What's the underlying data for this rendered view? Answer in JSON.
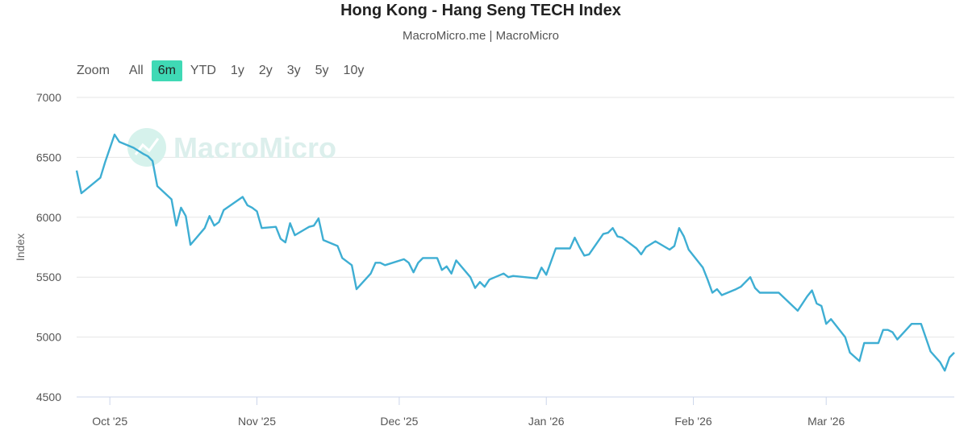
{
  "chart_data": {
    "type": "line",
    "title": "Hong Kong - Hang Seng TECH Index",
    "subtitle": "MacroMicro.me | MacroMicro",
    "ylabel": "Index",
    "xlabel": "",
    "ylim": [
      4500,
      7000
    ],
    "yticks": [
      4500,
      5000,
      5500,
      6000,
      6500,
      7000
    ],
    "xticks": [
      {
        "label": "Oct '25",
        "date": "2025-10-01"
      },
      {
        "label": "Nov '25",
        "date": "2025-11-01"
      },
      {
        "label": "Dec '25",
        "date": "2025-12-01"
      },
      {
        "label": "Jan '26",
        "date": "2026-01-01"
      },
      {
        "label": "Feb '26",
        "date": "2026-02-01"
      },
      {
        "label": "Mar '26",
        "date": "2026-03-01"
      }
    ],
    "grid": "horizontal",
    "line_color": "#3eaed3",
    "series": [
      {
        "name": "",
        "points": [
          [
            "2025-09-24",
            6390
          ],
          [
            "2025-09-25",
            6200
          ],
          [
            "2025-09-29",
            6330
          ],
          [
            "2025-09-30",
            6460
          ],
          [
            "2025-10-02",
            6690
          ],
          [
            "2025-10-03",
            6630
          ],
          [
            "2025-10-06",
            6580
          ],
          [
            "2025-10-08",
            6530
          ],
          [
            "2025-10-09",
            6510
          ],
          [
            "2025-10-10",
            6470
          ],
          [
            "2025-10-11",
            6260
          ],
          [
            "2025-10-14",
            6150
          ],
          [
            "2025-10-15",
            5930
          ],
          [
            "2025-10-16",
            6080
          ],
          [
            "2025-10-17",
            6010
          ],
          [
            "2025-10-18",
            5770
          ],
          [
            "2025-10-21",
            5910
          ],
          [
            "2025-10-22",
            6010
          ],
          [
            "2025-10-23",
            5930
          ],
          [
            "2025-10-24",
            5960
          ],
          [
            "2025-10-25",
            6060
          ],
          [
            "2025-10-29",
            6170
          ],
          [
            "2025-10-30",
            6100
          ],
          [
            "2025-10-31",
            6080
          ],
          [
            "2025-11-01",
            6050
          ],
          [
            "2025-11-02",
            5910
          ],
          [
            "2025-11-05",
            5920
          ],
          [
            "2025-11-06",
            5820
          ],
          [
            "2025-11-07",
            5790
          ],
          [
            "2025-11-08",
            5950
          ],
          [
            "2025-11-09",
            5850
          ],
          [
            "2025-11-12",
            5920
          ],
          [
            "2025-11-13",
            5930
          ],
          [
            "2025-11-14",
            5990
          ],
          [
            "2025-11-15",
            5810
          ],
          [
            "2025-11-18",
            5760
          ],
          [
            "2025-11-19",
            5660
          ],
          [
            "2025-11-21",
            5600
          ],
          [
            "2025-11-22",
            5400
          ],
          [
            "2025-11-25",
            5530
          ],
          [
            "2025-11-26",
            5620
          ],
          [
            "2025-11-27",
            5620
          ],
          [
            "2025-11-28",
            5600
          ],
          [
            "2025-12-02",
            5650
          ],
          [
            "2025-12-03",
            5620
          ],
          [
            "2025-12-04",
            5540
          ],
          [
            "2025-12-05",
            5620
          ],
          [
            "2025-12-06",
            5660
          ],
          [
            "2025-12-09",
            5660
          ],
          [
            "2025-12-10",
            5560
          ],
          [
            "2025-12-11",
            5590
          ],
          [
            "2025-12-12",
            5530
          ],
          [
            "2025-12-13",
            5640
          ],
          [
            "2025-12-16",
            5500
          ],
          [
            "2025-12-17",
            5410
          ],
          [
            "2025-12-18",
            5460
          ],
          [
            "2025-12-19",
            5420
          ],
          [
            "2025-12-20",
            5480
          ],
          [
            "2025-12-23",
            5530
          ],
          [
            "2025-12-24",
            5500
          ],
          [
            "2025-12-25",
            5510
          ],
          [
            "2025-12-30",
            5490
          ],
          [
            "2025-12-31",
            5580
          ],
          [
            "2026-01-01",
            5520
          ],
          [
            "2026-01-03",
            5740
          ],
          [
            "2026-01-06",
            5740
          ],
          [
            "2026-01-07",
            5830
          ],
          [
            "2026-01-08",
            5750
          ],
          [
            "2026-01-09",
            5680
          ],
          [
            "2026-01-10",
            5690
          ],
          [
            "2026-01-13",
            5860
          ],
          [
            "2026-01-14",
            5870
          ],
          [
            "2026-01-15",
            5910
          ],
          [
            "2026-01-16",
            5840
          ],
          [
            "2026-01-17",
            5830
          ],
          [
            "2026-01-20",
            5740
          ],
          [
            "2026-01-21",
            5690
          ],
          [
            "2026-01-22",
            5750
          ],
          [
            "2026-01-24",
            5800
          ],
          [
            "2026-01-27",
            5730
          ],
          [
            "2026-01-28",
            5760
          ],
          [
            "2026-01-29",
            5910
          ],
          [
            "2026-01-30",
            5840
          ],
          [
            "2026-01-31",
            5730
          ],
          [
            "2026-02-03",
            5580
          ],
          [
            "2026-02-04",
            5480
          ],
          [
            "2026-02-05",
            5370
          ],
          [
            "2026-02-06",
            5400
          ],
          [
            "2026-02-07",
            5350
          ],
          [
            "2026-02-10",
            5400
          ],
          [
            "2026-02-11",
            5420
          ],
          [
            "2026-02-13",
            5500
          ],
          [
            "2026-02-14",
            5410
          ],
          [
            "2026-02-15",
            5370
          ],
          [
            "2026-02-19",
            5370
          ],
          [
            "2026-02-23",
            5220
          ],
          [
            "2026-02-25",
            5340
          ],
          [
            "2026-02-26",
            5390
          ],
          [
            "2026-02-27",
            5280
          ],
          [
            "2026-02-28",
            5260
          ],
          [
            "2026-03-01",
            5110
          ],
          [
            "2026-03-02",
            5150
          ],
          [
            "2026-03-05",
            5000
          ],
          [
            "2026-03-06",
            4870
          ],
          [
            "2026-03-08",
            4800
          ],
          [
            "2026-03-09",
            4950
          ],
          [
            "2026-03-12",
            4950
          ],
          [
            "2026-03-13",
            5060
          ],
          [
            "2026-03-14",
            5060
          ],
          [
            "2026-03-15",
            5040
          ],
          [
            "2026-03-16",
            4980
          ],
          [
            "2026-03-19",
            5110
          ],
          [
            "2026-03-21",
            5110
          ],
          [
            "2026-03-23",
            4880
          ],
          [
            "2026-03-25",
            4790
          ],
          [
            "2026-03-26",
            4720
          ],
          [
            "2026-03-27",
            4830
          ],
          [
            "2026-03-28",
            4870
          ]
        ]
      }
    ]
  },
  "zoom": {
    "label": "Zoom",
    "options": [
      "All",
      "6m",
      "YTD",
      "1y",
      "2y",
      "3y",
      "5y",
      "10y"
    ],
    "selected": "6m"
  },
  "watermark": "MacroMicro",
  "colors": {
    "accent": "#3fd9b5",
    "line": "#3eaed3",
    "grid": "#e6e6e6"
  }
}
